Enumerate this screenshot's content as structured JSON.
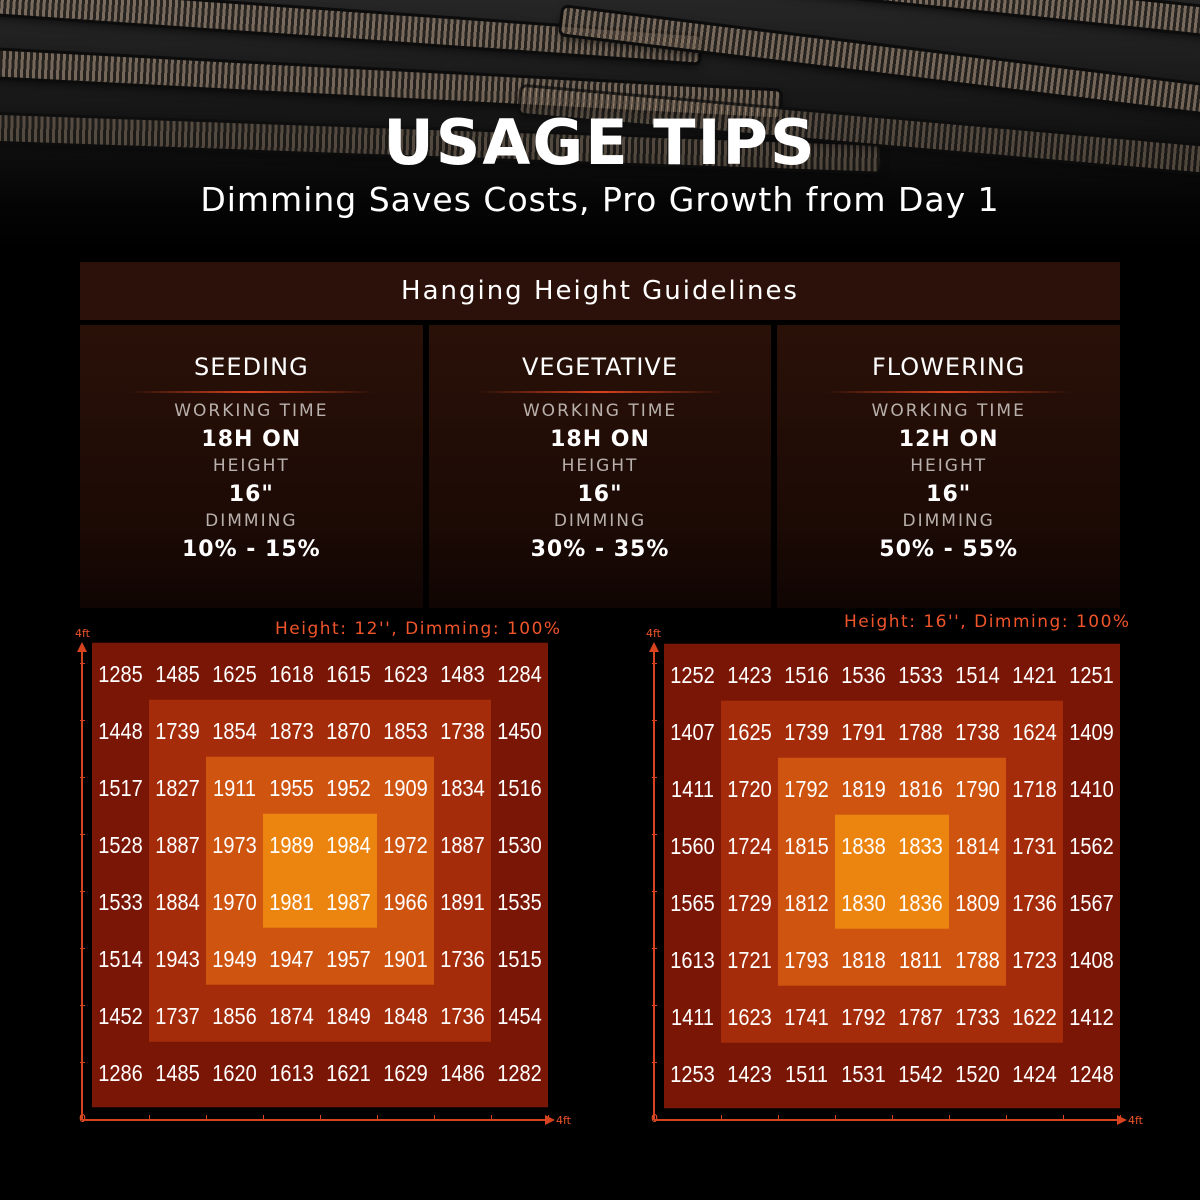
{
  "header": {
    "title": "USAGE TIPS",
    "subtitle": "Dimming Saves Costs, Pro Growth from Day 1"
  },
  "guidelines": {
    "heading": "Hanging Height Guidelines",
    "stages": [
      {
        "name": "SEEDING",
        "working_time_label": "WORKING TIME",
        "working_time": "18H ON",
        "height_label": "HEIGHT",
        "height": "16\"",
        "dimming_label": "DIMMING",
        "dimming": "10% - 15%"
      },
      {
        "name": "VEGETATIVE",
        "working_time_label": "WORKING TIME",
        "working_time": "18H ON",
        "height_label": "HEIGHT",
        "height": "16\"",
        "dimming_label": "DIMMING",
        "dimming": "30% - 35%"
      },
      {
        "name": "FLOWERING",
        "working_time_label": "WORKING TIME",
        "working_time": "12H ON",
        "height_label": "HEIGHT",
        "height": "16\"",
        "dimming_label": "DIMMING",
        "dimming": "50% - 55%"
      }
    ]
  },
  "colors": {
    "ring0": "#7a1605",
    "ring1": "#a42c0a",
    "ring2": "#cf5410",
    "ring3": "#ec8410",
    "axis": "#d8431f",
    "accent": "#f0542a"
  },
  "chart_data": [
    {
      "type": "heatmap",
      "title": "Height: 12'', Dimming: 100%",
      "x_axis_labels": [
        "0",
        "4ft"
      ],
      "y_axis_label": "4ft",
      "values": [
        [
          1285,
          1485,
          1625,
          1618,
          1615,
          1623,
          1483,
          1284
        ],
        [
          1448,
          1739,
          1854,
          1873,
          1870,
          1853,
          1738,
          1450
        ],
        [
          1517,
          1827,
          1911,
          1955,
          1952,
          1909,
          1834,
          1516
        ],
        [
          1528,
          1887,
          1973,
          1989,
          1984,
          1972,
          1887,
          1530
        ],
        [
          1533,
          1884,
          1970,
          1981,
          1987,
          1966,
          1891,
          1535
        ],
        [
          1514,
          1943,
          1949,
          1947,
          1957,
          1901,
          1736,
          1515
        ],
        [
          1452,
          1737,
          1856,
          1874,
          1849,
          1848,
          1736,
          1454
        ],
        [
          1286,
          1485,
          1620,
          1613,
          1621,
          1629,
          1486,
          1282
        ]
      ]
    },
    {
      "type": "heatmap",
      "title": "Height: 16'', Dimming: 100%",
      "x_axis_labels": [
        "0",
        "4ft"
      ],
      "y_axis_label": "4ft",
      "values": [
        [
          1252,
          1423,
          1516,
          1536,
          1533,
          1514,
          1421,
          1251
        ],
        [
          1407,
          1625,
          1739,
          1791,
          1788,
          1738,
          1624,
          1409
        ],
        [
          1411,
          1720,
          1792,
          1819,
          1816,
          1790,
          1718,
          1410
        ],
        [
          1560,
          1724,
          1815,
          1838,
          1833,
          1814,
          1731,
          1562
        ],
        [
          1565,
          1729,
          1812,
          1830,
          1836,
          1809,
          1736,
          1567
        ],
        [
          1613,
          1721,
          1793,
          1818,
          1811,
          1788,
          1723,
          1408
        ],
        [
          1411,
          1623,
          1741,
          1792,
          1787,
          1733,
          1622,
          1412
        ],
        [
          1253,
          1423,
          1511,
          1531,
          1542,
          1520,
          1424,
          1248
        ]
      ]
    }
  ]
}
